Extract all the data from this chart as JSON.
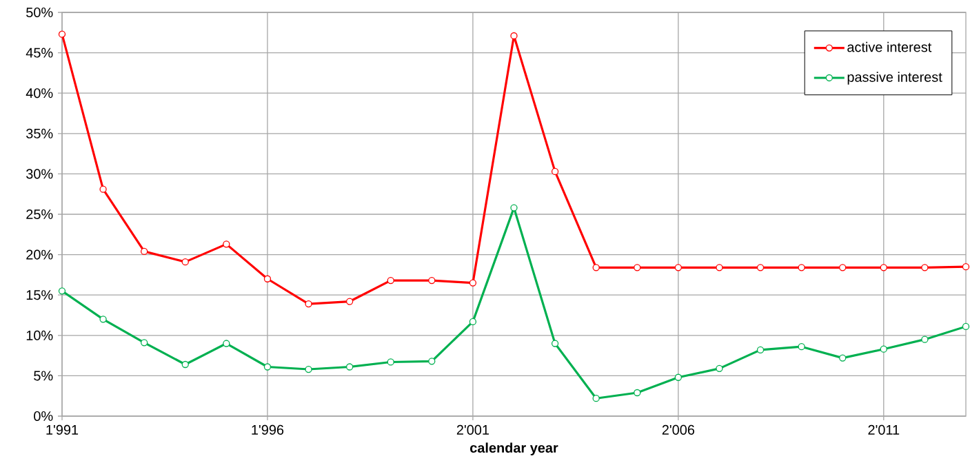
{
  "chart_data": {
    "type": "line",
    "xlabel": "calendar year",
    "x": [
      1991,
      1992,
      1993,
      1994,
      1995,
      1996,
      1997,
      1998,
      1999,
      2000,
      2001,
      2002,
      2003,
      2004,
      2005,
      2006,
      2007,
      2008,
      2009,
      2010,
      2011,
      2012,
      2013
    ],
    "series": [
      {
        "name": "active interest",
        "color": "#ff0000",
        "values": [
          47.3,
          28.1,
          20.4,
          19.1,
          21.3,
          17.0,
          13.9,
          14.2,
          16.8,
          16.8,
          16.5,
          47.1,
          30.3,
          18.4,
          18.4,
          18.4,
          18.4,
          18.4,
          18.4,
          18.4,
          18.4,
          18.4,
          18.5
        ]
      },
      {
        "name": "passive interest",
        "color": "#00b050",
        "values": [
          15.5,
          12.0,
          9.1,
          6.4,
          9.0,
          6.1,
          5.8,
          6.1,
          6.7,
          6.8,
          11.7,
          25.8,
          9.0,
          2.2,
          2.9,
          4.8,
          5.9,
          8.2,
          8.6,
          7.2,
          8.3,
          9.5,
          11.1
        ]
      }
    ],
    "xlim": [
      1991,
      2013
    ],
    "xticks": [
      {
        "value": 1991,
        "label": "1'991"
      },
      {
        "value": 1996,
        "label": "1'996"
      },
      {
        "value": 2001,
        "label": "2'001"
      },
      {
        "value": 2006,
        "label": "2'006"
      },
      {
        "value": 2011,
        "label": "2'011"
      }
    ],
    "ylim": [
      0,
      50
    ],
    "yticks": [
      {
        "value": 0,
        "label": "0%"
      },
      {
        "value": 5,
        "label": "5%"
      },
      {
        "value": 10,
        "label": "10%"
      },
      {
        "value": 15,
        "label": "15%"
      },
      {
        "value": 20,
        "label": "20%"
      },
      {
        "value": 25,
        "label": "25%"
      },
      {
        "value": 30,
        "label": "30%"
      },
      {
        "value": 35,
        "label": "35%"
      },
      {
        "value": 40,
        "label": "40%"
      },
      {
        "value": 45,
        "label": "45%"
      },
      {
        "value": 50,
        "label": "50%"
      }
    ],
    "grid": true,
    "legend": "top right",
    "marker": "circle",
    "line_style": "solid"
  }
}
